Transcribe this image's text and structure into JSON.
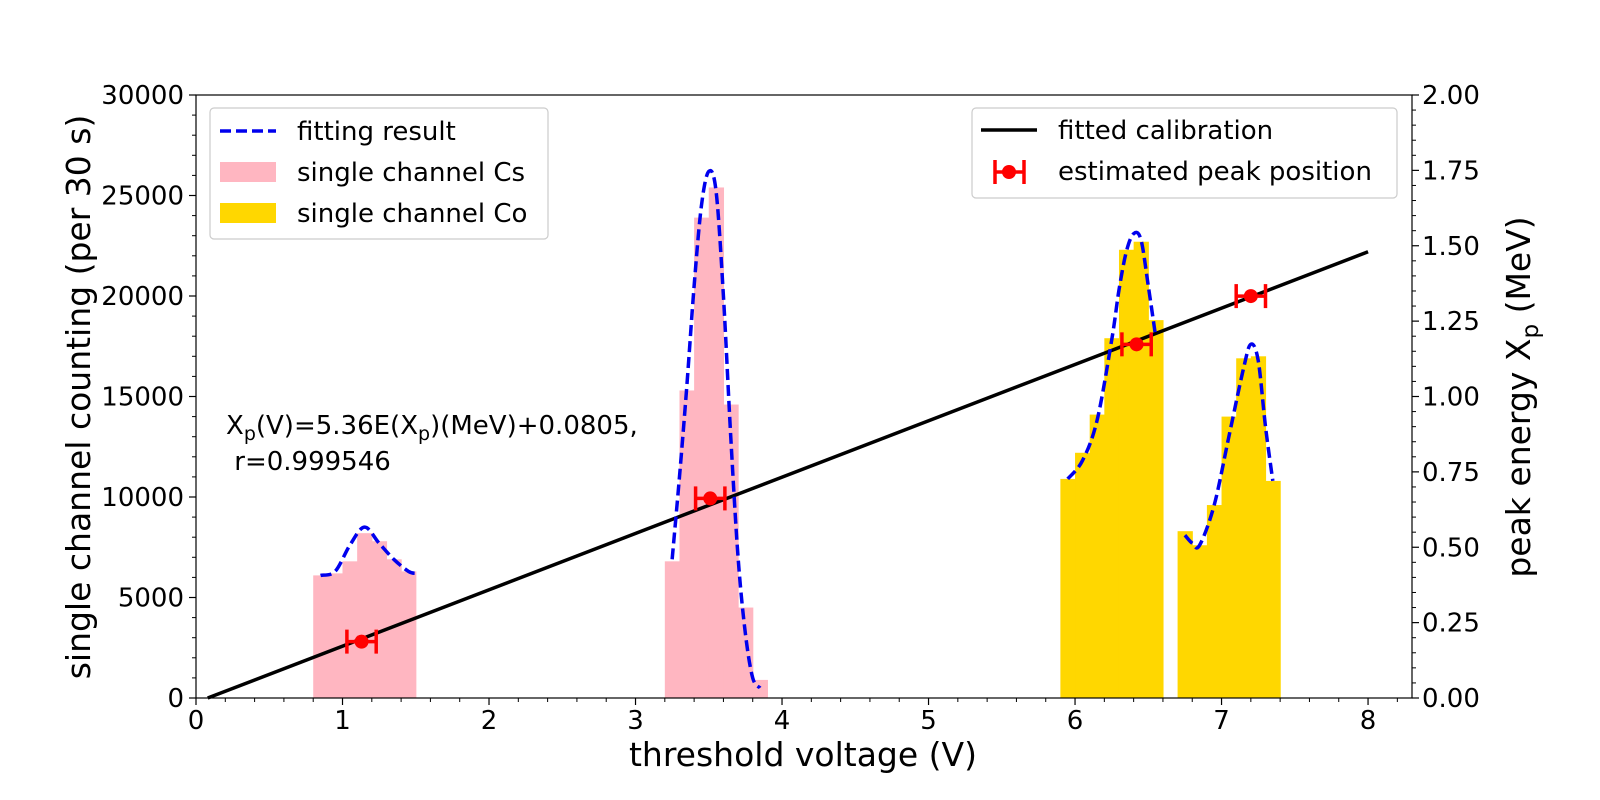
{
  "chart_data": {
    "type": "bar",
    "xlabel": "threshold voltage (V)",
    "ylabel_left": "single channel counting (per 30 s)",
    "ylabel_right_main": "peak energy X",
    "ylabel_right_sub": "p",
    "ylabel_right_unit": " (MeV)",
    "xlim": [
      0,
      8.3
    ],
    "ylim_left": [
      0,
      30000
    ],
    "ylim_right": [
      0,
      2.0
    ],
    "x_ticks": [
      0,
      1,
      2,
      3,
      4,
      5,
      6,
      7,
      8
    ],
    "y_left_ticks": [
      0,
      5000,
      10000,
      15000,
      20000,
      25000,
      30000
    ],
    "y_right_ticks": [
      "0.00",
      "0.25",
      "0.50",
      "0.75",
      "1.00",
      "1.25",
      "1.50",
      "1.75",
      "2.00"
    ],
    "colors": {
      "cs": "#ffb6c1",
      "co": "#ffd700",
      "fit": "#0000ee",
      "calibration": "#000000",
      "peak": "#ff0000"
    },
    "histograms": [
      {
        "name": "single channel Cs",
        "color": "#ffb6c1",
        "bin_width": 0.1,
        "bins": [
          [
            0.8,
            6100
          ],
          [
            0.9,
            6200
          ],
          [
            1.0,
            6800
          ],
          [
            1.1,
            8200
          ],
          [
            1.2,
            7800
          ],
          [
            1.3,
            6900
          ],
          [
            1.4,
            6300
          ],
          [
            3.2,
            6800
          ],
          [
            3.3,
            15300
          ],
          [
            3.4,
            23900
          ],
          [
            3.5,
            25400
          ],
          [
            3.6,
            14600
          ],
          [
            3.7,
            4500
          ],
          [
            3.8,
            900
          ]
        ]
      },
      {
        "name": "single channel Co",
        "color": "#ffd700",
        "bin_width": 0.1,
        "bins": [
          [
            5.9,
            10900
          ],
          [
            6.0,
            12200
          ],
          [
            6.1,
            14100
          ],
          [
            6.2,
            17900
          ],
          [
            6.3,
            22300
          ],
          [
            6.4,
            22700
          ],
          [
            6.5,
            18800
          ],
          [
            6.7,
            8300
          ],
          [
            6.8,
            7600
          ],
          [
            6.9,
            9600
          ],
          [
            7.0,
            14000
          ],
          [
            7.1,
            16900
          ],
          [
            7.2,
            17000
          ],
          [
            7.3,
            10800
          ]
        ]
      }
    ],
    "fit_curves": [
      {
        "name": "fitting result",
        "segments": [
          [
            [
              0.85,
              6100
            ],
            [
              0.95,
              6300
            ],
            [
              1.05,
              7600
            ],
            [
              1.15,
              8500
            ],
            [
              1.25,
              7700
            ],
            [
              1.35,
              6900
            ],
            [
              1.45,
              6300
            ],
            [
              1.5,
              6200
            ]
          ],
          [
            [
              3.25,
              6900
            ],
            [
              3.3,
              11000
            ],
            [
              3.35,
              15500
            ],
            [
              3.4,
              20500
            ],
            [
              3.45,
              24500
            ],
            [
              3.5,
              26200
            ],
            [
              3.55,
              25200
            ],
            [
              3.6,
              20000
            ],
            [
              3.65,
              13000
            ],
            [
              3.7,
              7000
            ],
            [
              3.75,
              3200
            ],
            [
              3.8,
              1000
            ],
            [
              3.85,
              500
            ]
          ],
          [
            [
              5.95,
              10900
            ],
            [
              6.05,
              11800
            ],
            [
              6.15,
              13800
            ],
            [
              6.25,
              17800
            ],
            [
              6.3,
              20300
            ],
            [
              6.35,
              22200
            ],
            [
              6.4,
              23100
            ],
            [
              6.45,
              22800
            ],
            [
              6.5,
              20500
            ],
            [
              6.55,
              18000
            ]
          ],
          [
            [
              6.75,
              8100
            ],
            [
              6.8,
              7700
            ],
            [
              6.85,
              7600
            ],
            [
              6.95,
              9600
            ],
            [
              7.05,
              13000
            ],
            [
              7.15,
              16400
            ],
            [
              7.2,
              17600
            ],
            [
              7.25,
              16800
            ],
            [
              7.3,
              13500
            ],
            [
              7.35,
              10800
            ]
          ]
        ]
      }
    ],
    "calibration_line": {
      "name": "fitted calibration",
      "x": [
        0.08,
        8.0
      ],
      "y": [
        0.0,
        1.48
      ]
    },
    "peaks": {
      "name": "estimated peak position",
      "x": [
        1.13,
        3.51,
        6.42,
        7.2
      ],
      "y": [
        0.187,
        0.662,
        1.173,
        1.333
      ],
      "xerr": 0.1
    },
    "legend_left": {
      "placement": "top-left",
      "items": [
        {
          "label": "fitting result",
          "kind": "dash"
        },
        {
          "label": "single channel Cs",
          "kind": "patch",
          "color": "#ffb6c1"
        },
        {
          "label": "single channel Co",
          "kind": "patch",
          "color": "#ffd700"
        }
      ]
    },
    "legend_right": {
      "placement": "top-right",
      "items": [
        {
          "label": "fitted calibration",
          "kind": "line"
        },
        {
          "label": "estimated peak position",
          "kind": "errorpoint"
        }
      ]
    },
    "annotation": {
      "pre": "X",
      "sub1": "p",
      "mid": "(V)=5.36E(X",
      "sub2": "p",
      "post": ")(MeV)+0.0805,",
      "line2": " r=0.999546"
    }
  }
}
